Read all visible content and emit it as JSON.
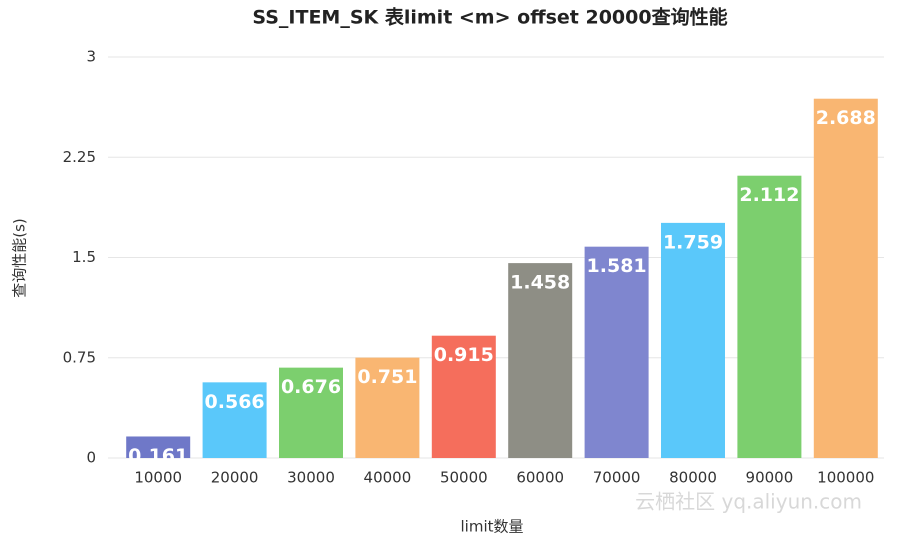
{
  "chart_data": {
    "type": "bar",
    "title": "SS_ITEM_SK 表limit <m> offset 20000查询性能",
    "x_label": "limit数量",
    "y_label": "查询性能(s)",
    "watermark": "云栖社区 yq.aliyun.com",
    "categories": [
      "10000",
      "20000",
      "30000",
      "40000",
      "50000",
      "60000",
      "70000",
      "80000",
      "90000",
      "100000"
    ],
    "values": [
      0.161,
      0.566,
      0.676,
      0.751,
      0.915,
      1.458,
      1.581,
      1.759,
      2.112,
      2.688
    ],
    "colors": [
      "#6f78c8",
      "#5ac8fa",
      "#7ccf6e",
      "#f9b672",
      "#f56e5c",
      "#8e8e85",
      "#7f86cf",
      "#5ac8fa",
      "#7ccf6e",
      "#f9b672"
    ],
    "ylim": [
      0,
      3
    ],
    "yticks": [
      0,
      0.75,
      1.5,
      2.25,
      3
    ],
    "grid": true
  }
}
